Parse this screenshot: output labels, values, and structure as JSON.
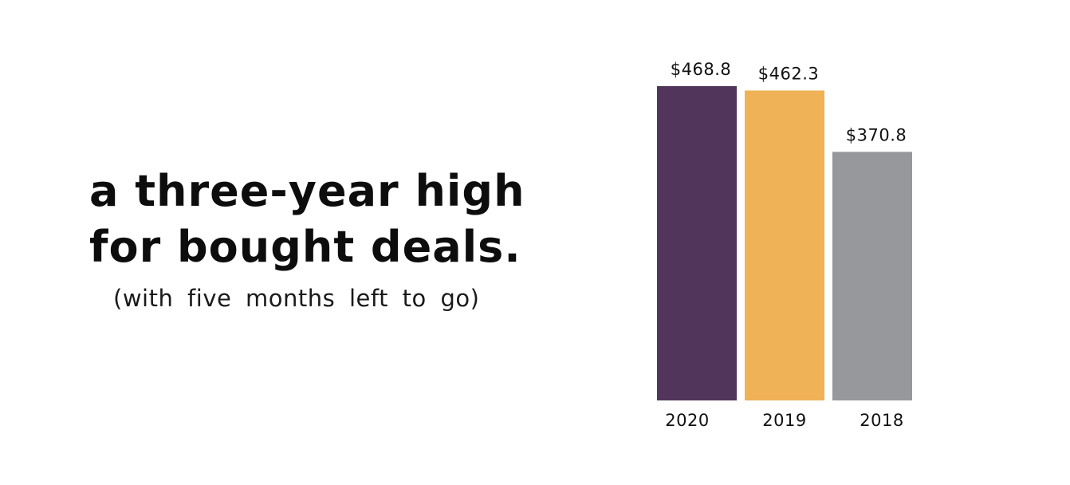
{
  "headline": {
    "line1": "a three-year high",
    "line2": "for bought deals."
  },
  "subhead": "(with five months left to go)",
  "chart_data": {
    "type": "bar",
    "categories": [
      "2020",
      "2019",
      "2018"
    ],
    "values": [
      468.8,
      462.3,
      370.8
    ],
    "value_labels": [
      "$468.8",
      "$462.3",
      "$370.8"
    ],
    "colors": [
      "#52355b",
      "#f0b256",
      "#97989b"
    ],
    "title": "",
    "xlabel": "",
    "ylabel": "",
    "ylim": [
      0,
      468.8
    ],
    "grid": false,
    "legend": "none"
  }
}
